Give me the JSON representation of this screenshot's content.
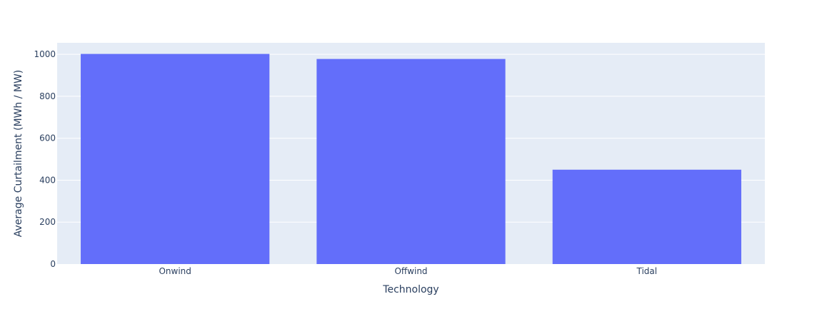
{
  "chart_data": {
    "type": "bar",
    "title": "",
    "xlabel": "Technology",
    "ylabel": "Average Curtailment (MWh / MW)",
    "categories": [
      "Onwind",
      "Offwind",
      "Tidal"
    ],
    "series": [
      {
        "values": [
          1002,
          978,
          450
        ]
      }
    ],
    "ylim": [
      0,
      1055
    ],
    "yticks": [
      0,
      200,
      400,
      600,
      800,
      1000
    ],
    "ytick_labels": [
      "0",
      "200",
      "400",
      "600",
      "800",
      "1000"
    ],
    "grid": true,
    "legend": "none",
    "colors": {
      "bar": "#636efa",
      "plot_background": "#e5ecf6",
      "gridline": "#ffffff",
      "text": "#2a3f5f"
    }
  }
}
